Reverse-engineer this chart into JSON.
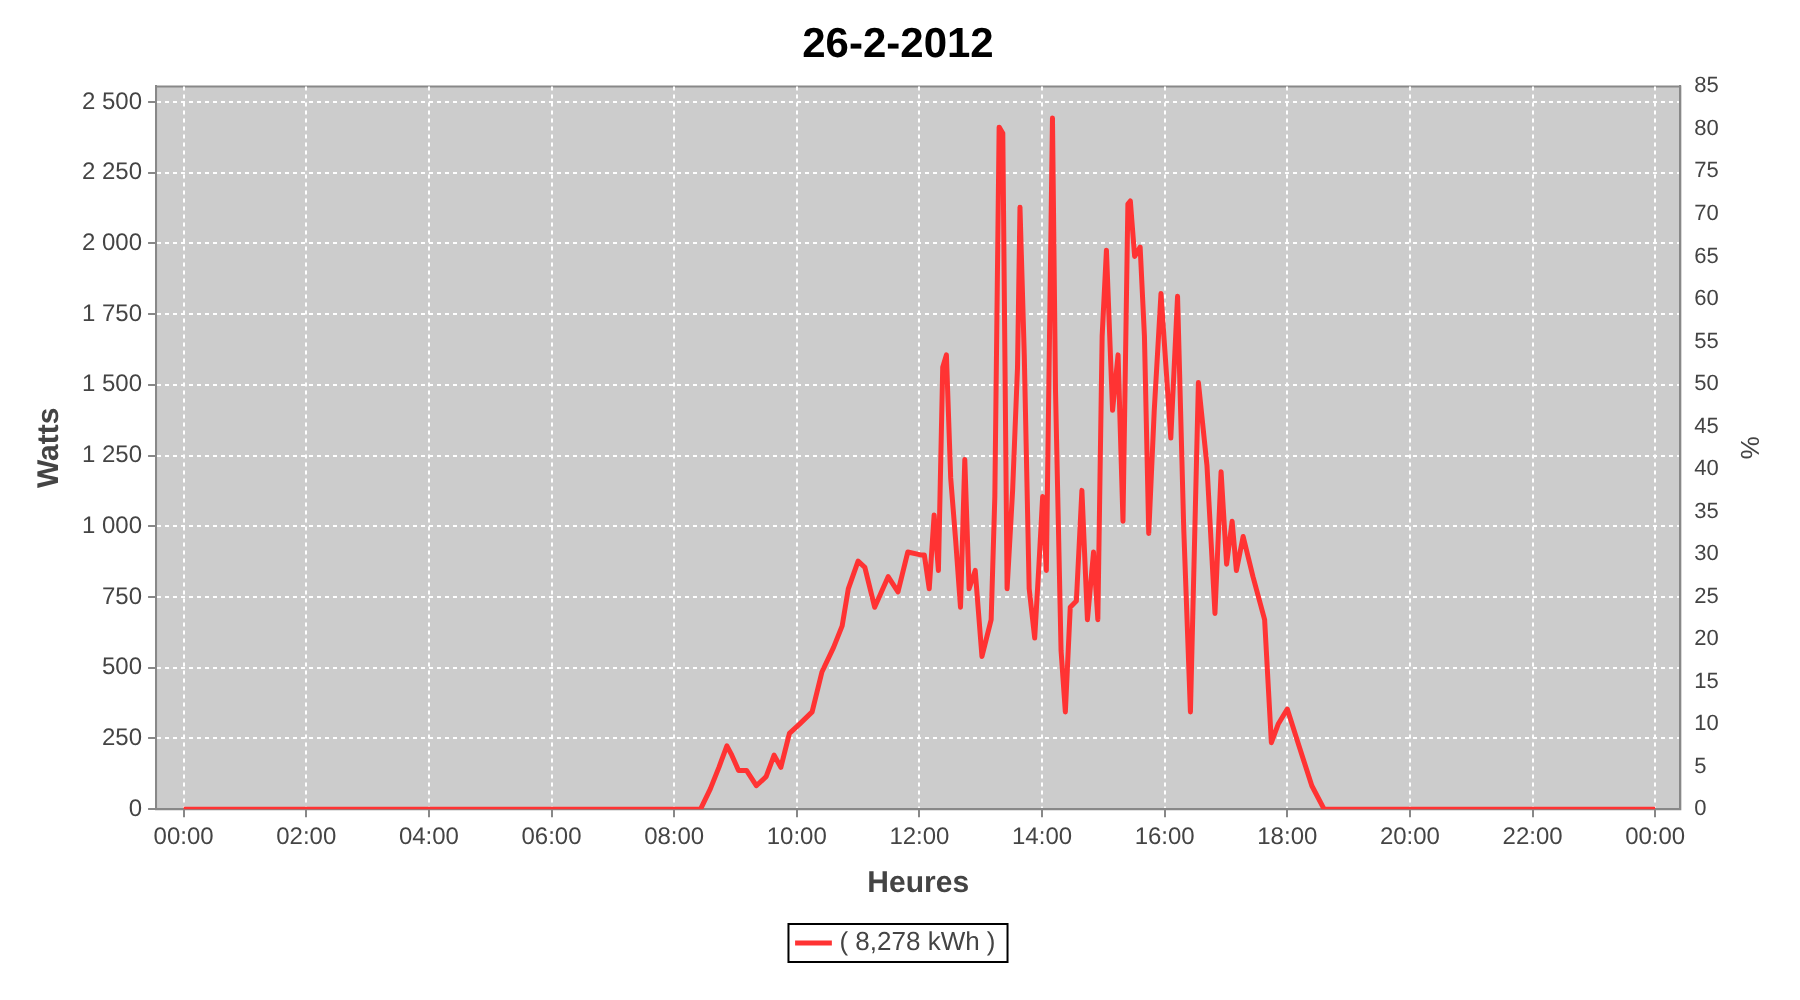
{
  "chart_data": {
    "type": "line",
    "title": "26-2-2012",
    "xlabel": "Heures",
    "ylabel": "Watts",
    "y2label": "%",
    "x": [
      0,
      8.43,
      8.59,
      8.73,
      8.86,
      8.94,
      9.05,
      9.18,
      9.34,
      9.5,
      9.63,
      9.74,
      9.88,
      10.04,
      10.25,
      10.41,
      10.6,
      10.74,
      10.84,
      11,
      11.11,
      11.27,
      11.49,
      11.65,
      11.81,
      12.02,
      12.08,
      12.16,
      12.24,
      12.31,
      12.38,
      12.44,
      12.51,
      12.59,
      12.67,
      12.74,
      12.81,
      12.91,
      13.02,
      13.17,
      13.23,
      13.3,
      13.36,
      13.43,
      13.52,
      13.6,
      13.64,
      13.71,
      13.79,
      13.88,
      13.95,
      14.01,
      14.07,
      14.17,
      14.22,
      14.31,
      14.38,
      14.46,
      14.56,
      14.65,
      14.74,
      14.84,
      14.91,
      14.98,
      15.05,
      15.15,
      15.24,
      15.32,
      15.4,
      15.44,
      15.51,
      15.6,
      15.67,
      15.74,
      15.83,
      15.94,
      16.1,
      16.21,
      16.31,
      16.42,
      16.55,
      16.69,
      16.82,
      16.92,
      17.01,
      17.1,
      17.17,
      17.28,
      17.44,
      17.63,
      17.74,
      17.85,
      18,
      18.19,
      18.4,
      18.6,
      24
    ],
    "series": [
      {
        "name": "( 8,278 kWh )",
        "color": "#ff3333",
        "values": [
          0,
          0,
          72,
          148,
          224,
          191,
          137,
          137,
          83,
          115,
          191,
          148,
          268,
          300,
          344,
          485,
          572,
          648,
          779,
          877,
          855,
          714,
          822,
          768,
          909,
          899,
          899,
          779,
          1040,
          844,
          1562,
          1606,
          1171,
          953,
          714,
          1236,
          779,
          844,
          540,
          670,
          1105,
          2411,
          2389,
          779,
          1127,
          1562,
          2128,
          1606,
          779,
          605,
          866,
          1105,
          844,
          2443,
          1475,
          561,
          344,
          714,
          736,
          1127,
          670,
          909,
          670,
          1671,
          1976,
          1410,
          1606,
          1018,
          2139,
          2150,
          1954,
          1987,
          1671,
          975,
          1410,
          1823,
          1312,
          1813,
          997,
          344,
          1508,
          1214,
          692,
          1193,
          866,
          1018,
          844,
          964,
          822,
          670,
          235,
          300,
          354,
          224,
          83,
          0,
          0
        ]
      }
    ],
    "xlim": [
      -0.45,
      24.41
    ],
    "xticks": [
      {
        "value": 0,
        "label": "00:00"
      },
      {
        "value": 2,
        "label": "02:00"
      },
      {
        "value": 4,
        "label": "04:00"
      },
      {
        "value": 6,
        "label": "06:00"
      },
      {
        "value": 8,
        "label": "08:00"
      },
      {
        "value": 10,
        "label": "10:00"
      },
      {
        "value": 12,
        "label": "12:00"
      },
      {
        "value": 14,
        "label": "14:00"
      },
      {
        "value": 16,
        "label": "16:00"
      },
      {
        "value": 18,
        "label": "18:00"
      },
      {
        "value": 20,
        "label": "20:00"
      },
      {
        "value": 22,
        "label": "22:00"
      },
      {
        "value": 24,
        "label": "00:00"
      }
    ],
    "ylim": [
      0,
      2555
    ],
    "yticks": [
      0,
      250,
      500,
      750,
      {
        "value": 1000,
        "label": "1 000"
      },
      {
        "value": 1250,
        "label": "1 250"
      },
      {
        "value": 1500,
        "label": "1 500"
      },
      {
        "value": 1750,
        "label": "1 750"
      },
      {
        "value": 2000,
        "label": "2 000"
      },
      {
        "value": 2250,
        "label": "2 250"
      },
      {
        "value": 2500,
        "label": "2 500"
      }
    ],
    "y2lim": [
      0,
      85
    ],
    "y2ticks": [
      0,
      5,
      10,
      15,
      20,
      25,
      30,
      35,
      40,
      45,
      50,
      55,
      60,
      65,
      70,
      75,
      80,
      85
    ],
    "grid": true,
    "legend": "bottom"
  }
}
